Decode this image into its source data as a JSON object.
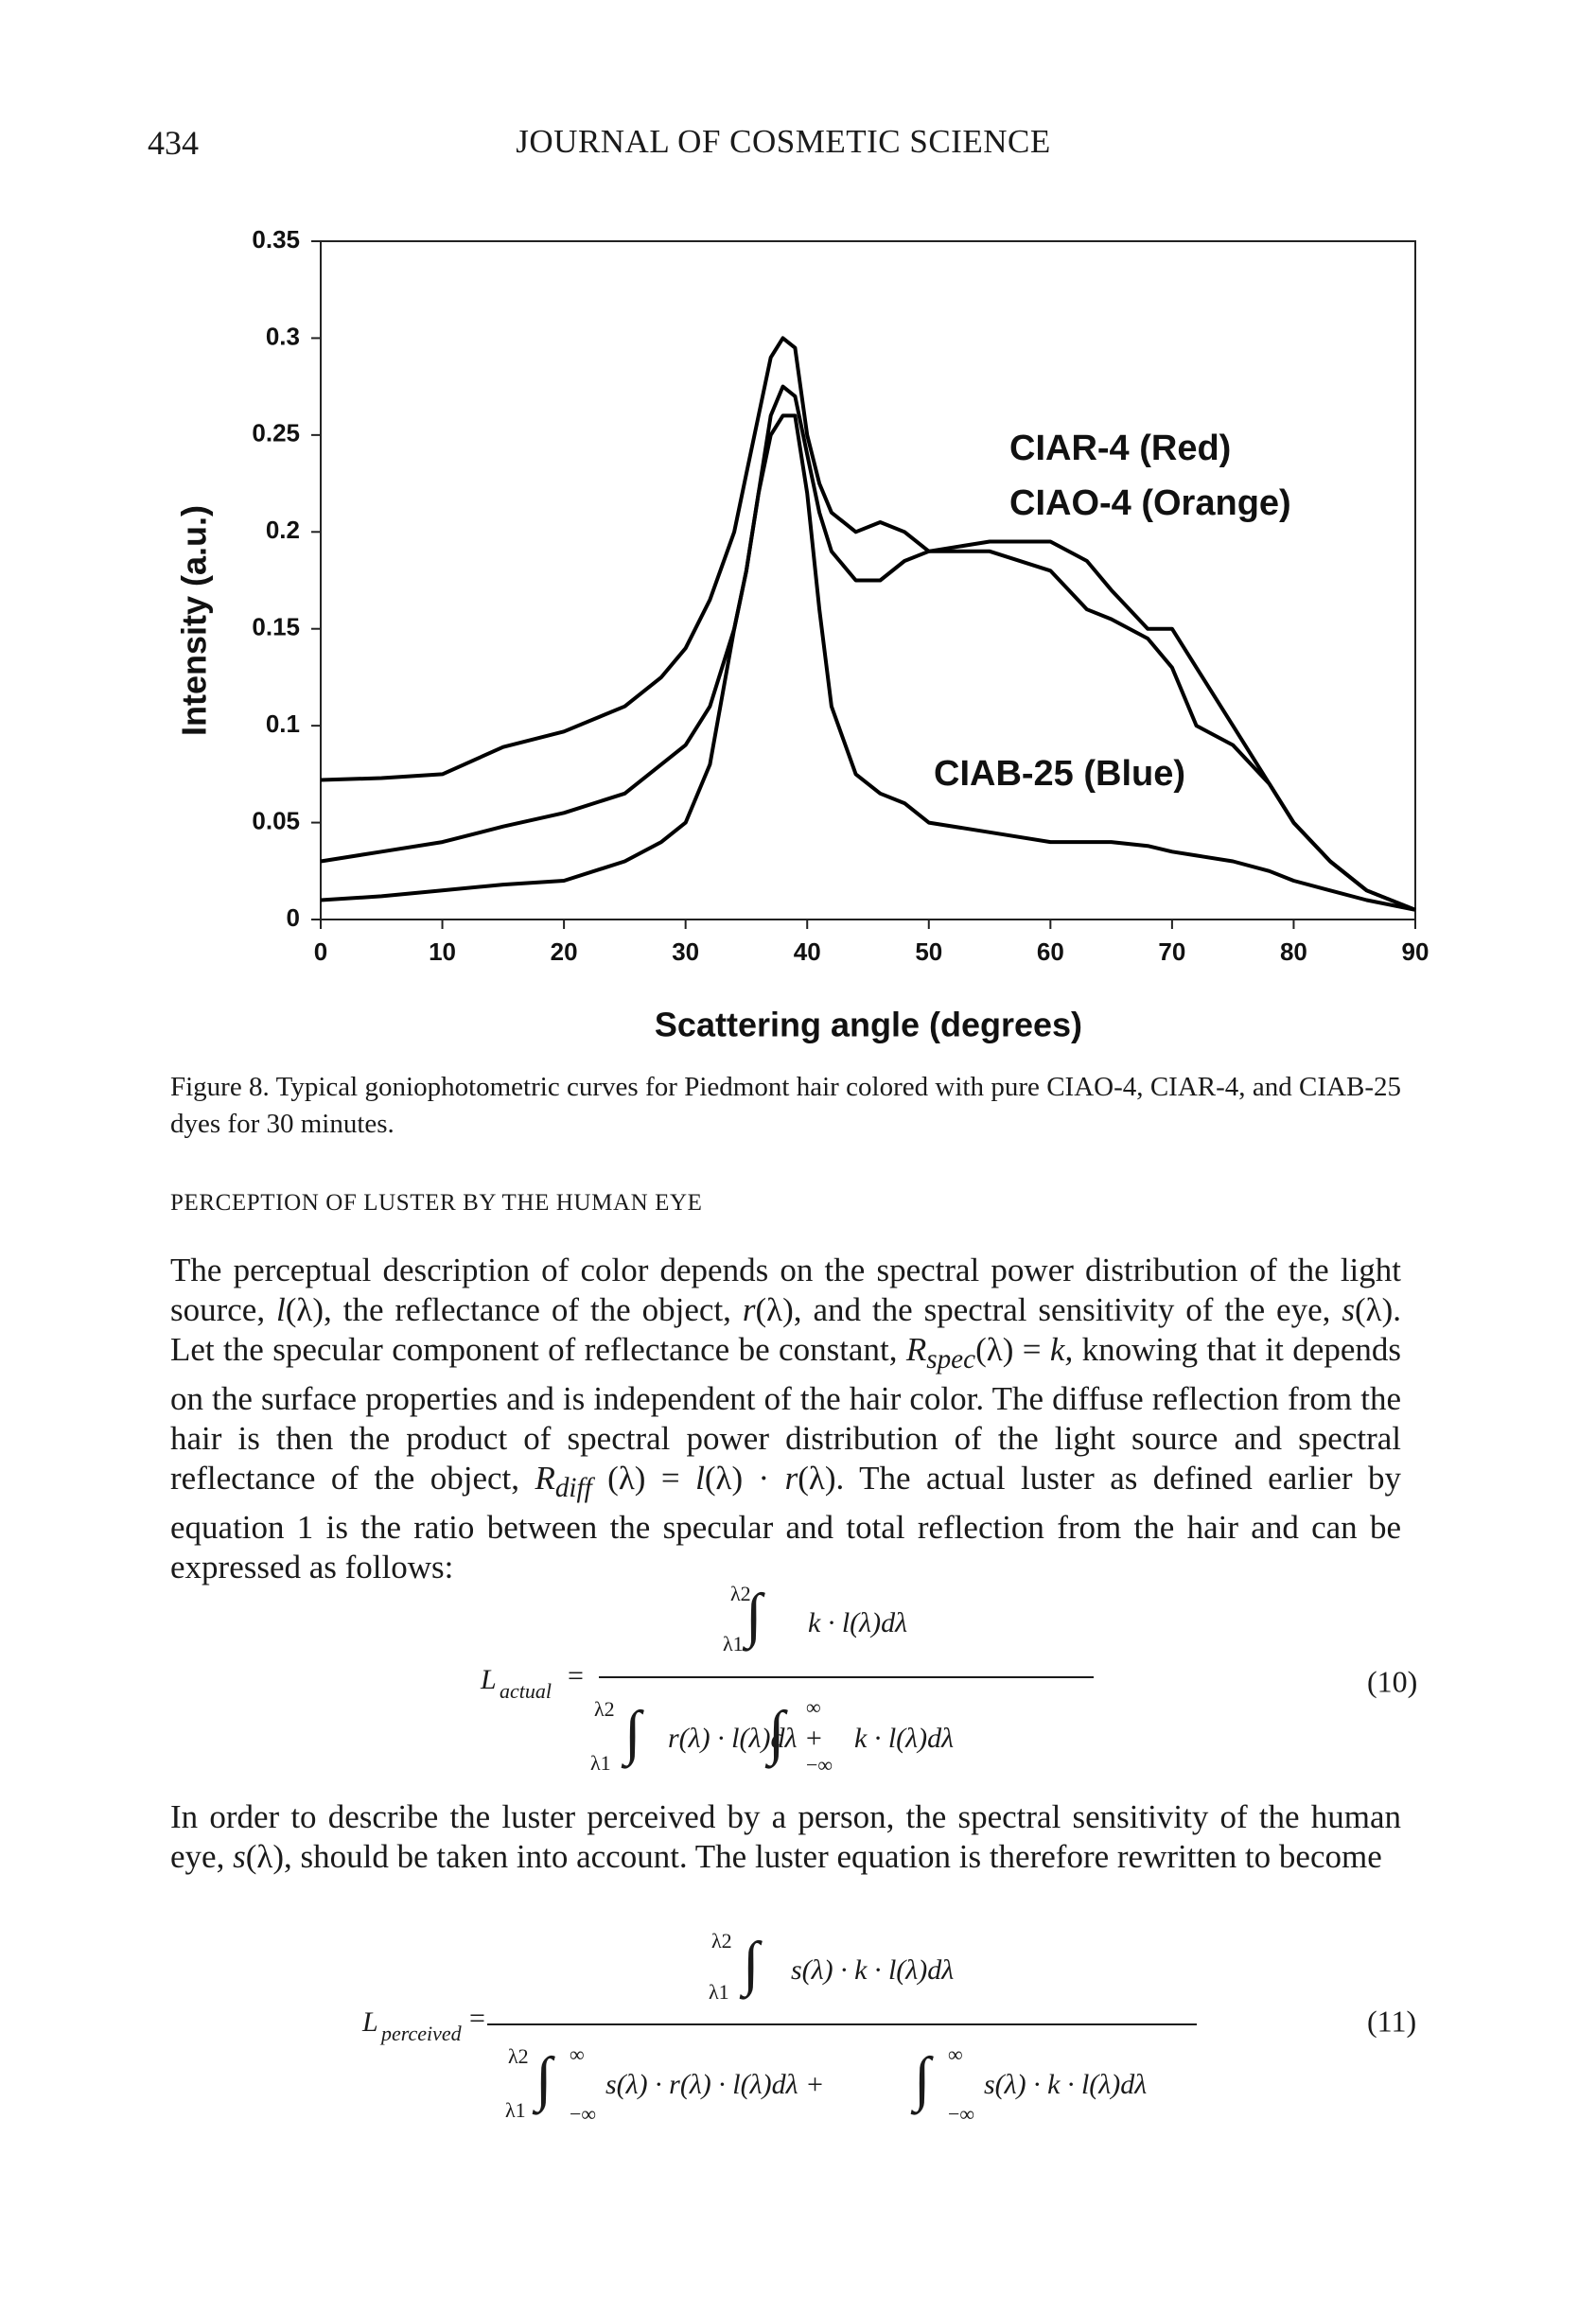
{
  "header": {
    "page_number": "434",
    "title": "JOURNAL OF COSMETIC SCIENCE"
  },
  "chart_data": {
    "type": "line",
    "ylabel": "Intensity (a.u.)",
    "xlabel": "Scattering angle (degrees)",
    "x": [
      0,
      5,
      10,
      15,
      20,
      25,
      28,
      30,
      32,
      34,
      35,
      36,
      37,
      38,
      39,
      40,
      41,
      42,
      44,
      46,
      48,
      50,
      55,
      60,
      63,
      65,
      68,
      70,
      72,
      75,
      78,
      80,
      83,
      86,
      90
    ],
    "series": [
      {
        "name": "CIAR-4 (Red)",
        "color": "#000000",
        "values": [
          0.072,
          0.073,
          0.075,
          0.089,
          0.097,
          0.11,
          0.125,
          0.14,
          0.165,
          0.2,
          0.23,
          0.26,
          0.29,
          0.3,
          0.295,
          0.25,
          0.225,
          0.21,
          0.2,
          0.205,
          0.2,
          0.19,
          0.195,
          0.195,
          0.185,
          0.17,
          0.15,
          0.15,
          0.13,
          0.1,
          0.07,
          0.05,
          0.03,
          0.015,
          0.005
        ]
      },
      {
        "name": "CIAO-4 (Orange)",
        "color": "#000000",
        "values": [
          0.03,
          0.035,
          0.04,
          0.048,
          0.055,
          0.065,
          0.08,
          0.09,
          0.11,
          0.15,
          0.18,
          0.22,
          0.26,
          0.275,
          0.27,
          0.24,
          0.21,
          0.19,
          0.175,
          0.175,
          0.185,
          0.19,
          0.19,
          0.18,
          0.16,
          0.155,
          0.145,
          0.13,
          0.1,
          0.09,
          0.07,
          0.05,
          0.03,
          0.015,
          0.005
        ]
      },
      {
        "name": "CIAB-25 (Blue)",
        "color": "#000000",
        "values": [
          0.01,
          0.012,
          0.015,
          0.018,
          0.02,
          0.03,
          0.04,
          0.05,
          0.08,
          0.15,
          0.18,
          0.22,
          0.25,
          0.26,
          0.26,
          0.22,
          0.16,
          0.11,
          0.075,
          0.065,
          0.06,
          0.05,
          0.045,
          0.04,
          0.04,
          0.04,
          0.038,
          0.035,
          0.033,
          0.03,
          0.025,
          0.02,
          0.015,
          0.01,
          0.005
        ]
      }
    ],
    "xlim": [
      0,
      90
    ],
    "xticks": [
      0,
      10,
      20,
      30,
      40,
      50,
      60,
      70,
      80,
      90
    ],
    "ylim": [
      0,
      0.35
    ],
    "yticks": [
      0,
      0.05,
      0.1,
      0.15,
      0.2,
      0.25,
      0.3,
      0.35
    ],
    "grid": false
  },
  "caption": {
    "label": "Figure 8.",
    "text": " Typical goniophotometric curves for Piedmont hair colored with pure CIAO-4, CIAR-4, and CIAB-25 dyes for 30 minutes."
  },
  "section_heading": "PERCEPTION OF LUSTER BY THE HUMAN EYE",
  "paragraph1": [
    "The perceptual description of color depends on the spectral power distribution of the light source, ",
    "l",
    "(λ), the reflectance of the object, ",
    "r",
    "(λ), and the spectral sensitivity of the eye, ",
    "s",
    "(λ). Let the specular component of reflectance be constant, ",
    "R",
    "spec",
    "(λ) = ",
    "k,",
    " knowing that it depends on the surface properties and is independent of the hair color. The diffuse reflection from the hair is then the product of spectral power distribution of the light source and spectral reflectance of the object, ",
    "R",
    "diff",
    " (λ) = ",
    "l",
    "(λ) · ",
    "r",
    "(λ). The actual luster as defined earlier by equation 1 is the ratio between the specular and total reflection from the hair and can be expressed as follows:"
  ],
  "equation10": {
    "lhs": "L",
    "lhs_sub": "actual",
    "equals": "=",
    "integral": "∫",
    "upper": "λ2",
    "lower": "λ1",
    "inf": "∞",
    "neg_inf": "−∞",
    "numerator": "k · l(λ)dλ",
    "denominator_1": "r(λ) · l(λ)dλ +",
    "denominator_2": "k · l(λ)dλ",
    "number": "(10)"
  },
  "paragraph2": [
    "In order to describe the luster perceived by a person, the spectral sensitivity of the human eye, ",
    "s",
    "(λ), should be taken into account. The luster equation is therefore rewritten to become"
  ],
  "equation11": {
    "lhs": "L",
    "lhs_sub": "perceived",
    "equals": "=",
    "integral": "∫",
    "upper": "λ2",
    "lower": "λ1",
    "inf": "∞",
    "neg_inf": "−∞",
    "numerator": "s(λ) · k · l(λ)dλ",
    "denominator_1": "s(λ) · r(λ) · l(λ)dλ +",
    "denominator_2": "s(λ) · k · l(λ)dλ",
    "number": "(11)"
  }
}
